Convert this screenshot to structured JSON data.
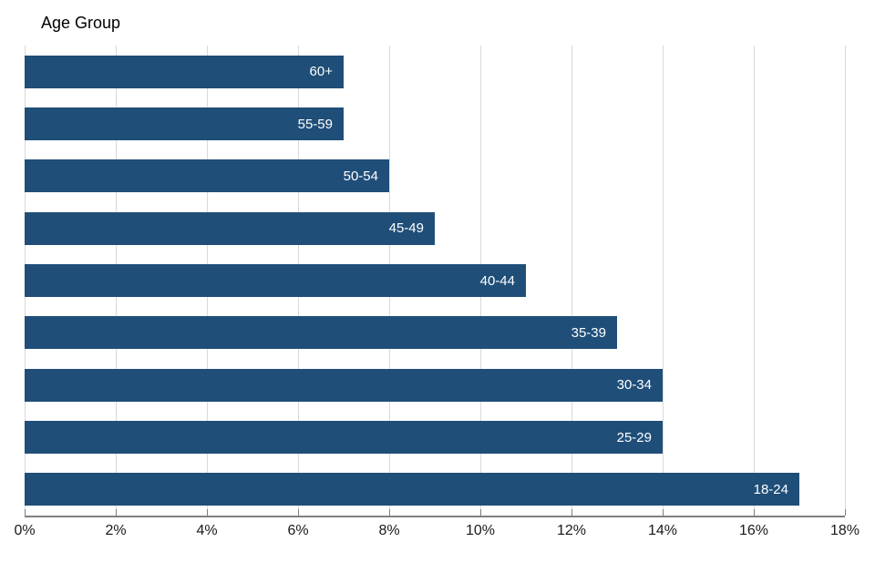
{
  "title": "Age Group",
  "chart_data": {
    "type": "bar",
    "orientation": "horizontal",
    "title": "Age Group",
    "xlabel": "",
    "ylabel": "Age Group",
    "categories": [
      "60+",
      "55-59",
      "50-54",
      "45-49",
      "40-44",
      "35-39",
      "30-34",
      "25-29",
      "18-24"
    ],
    "values": [
      7,
      7,
      8,
      9,
      11,
      13,
      14,
      14,
      17
    ],
    "value_unit": "%",
    "xlim": [
      0,
      18
    ],
    "x_tick_values": [
      0,
      2,
      4,
      6,
      8,
      10,
      12,
      14,
      16,
      18
    ],
    "x_tick_labels": [
      "0%",
      "2%",
      "4%",
      "6%",
      "8%",
      "10%",
      "12%",
      "14%",
      "16%",
      "18%"
    ],
    "grid": "vertical",
    "legend": "none",
    "bar_label_placement": "inside-end",
    "colors": {
      "bar": "#1F4E79",
      "gridline": "#D9D9D9",
      "axis_line": "#7F7F7F",
      "tick": "#7F7F7F",
      "bar_label_text": "#FFFFFF",
      "tick_label_text": "#1A1A1A",
      "title_text": "#000000",
      "background": "#FFFFFF"
    }
  }
}
